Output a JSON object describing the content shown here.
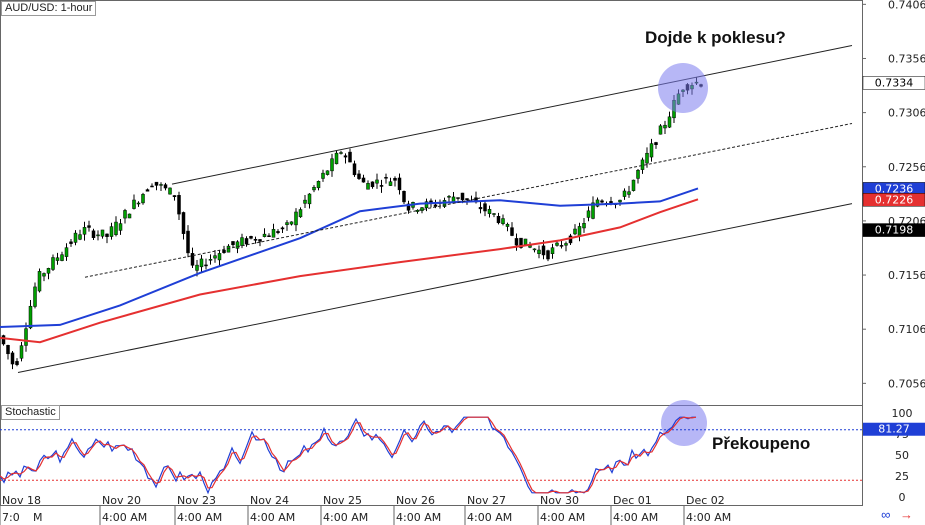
{
  "chart_data": {
    "type": "candlestick",
    "title": "AUD/USD: 1-hour",
    "y_ticks": [
      "0.7406",
      "0.7356",
      "0.7306",
      "0.7256",
      "0.7206",
      "0.7156",
      "0.7106",
      "0.7056"
    ],
    "ylim": [
      0.7036,
      0.741
    ],
    "price_tags": [
      {
        "label": "0.7334",
        "color": "#000000",
        "bg": "#ffffff",
        "value": 0.7334
      },
      {
        "label": "0.7236",
        "color": "#ffffff",
        "bg": "#1f3fd6",
        "value": 0.7236
      },
      {
        "label": "0.7226",
        "color": "#ffffff",
        "bg": "#e53030",
        "value": 0.7226
      },
      {
        "label": "0.7198",
        "color": "#ffffff",
        "bg": "#000000",
        "value": 0.7198
      }
    ],
    "x_dates": [
      "Nov 18",
      "Nov 20",
      "Nov 23",
      "Nov 24",
      "Nov 25",
      "Nov 26",
      "Nov 27",
      "Nov 30",
      "Dec 01",
      "Dec 02"
    ],
    "x_times": [
      "7:0",
      "M",
      "4:00 AM",
      "4:00 AM",
      "4:00 AM",
      "4:00 AM",
      "4:00 AM",
      "4:00 AM",
      "4:00 AM",
      "4:00 AM",
      "4:00 AM"
    ],
    "annotation_top": "Dojde k poklesu?",
    "annotation_bottom": "Překoupeno",
    "stochastic": {
      "label": "Stochastic",
      "ticks": [
        "100",
        "75",
        "50",
        "25",
        "0"
      ],
      "current_label": "81.27",
      "current_value": 81.27,
      "levels": [
        80,
        20
      ]
    },
    "colors": {
      "bull": "#00a000",
      "bear": "#000000",
      "ma_fast": "#1f3fd6",
      "ma_slow": "#e53030",
      "circle": "#7b7bef",
      "stoch_k": "#1f3fd6",
      "stoch_d": "#e53030"
    },
    "icons": [
      "link-icon",
      "arrow-right-icon"
    ]
  }
}
